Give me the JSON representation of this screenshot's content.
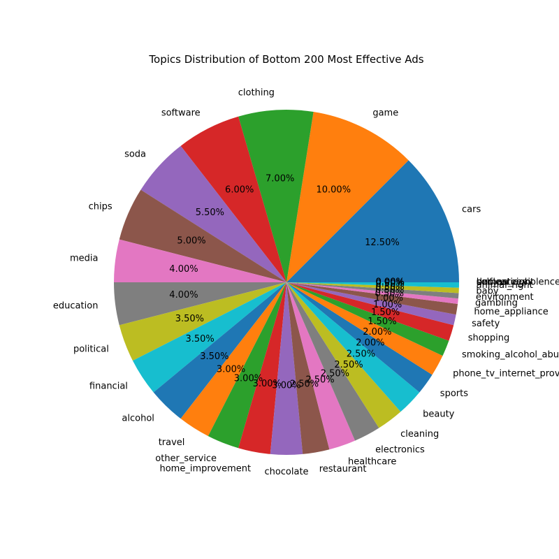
{
  "chart_data": {
    "type": "pie",
    "title": "Topics Distribution of Bottom 200 Most Effective Ads",
    "start_angle_deg": 0,
    "direction": "counterclockwise",
    "value_format": "percent_2_decimals",
    "slices": [
      {
        "label": "cars",
        "value": 12.5,
        "color": "#1f77b4"
      },
      {
        "label": "game",
        "value": 10.0,
        "color": "#ff7f0e"
      },
      {
        "label": "clothing",
        "value": 7.0,
        "color": "#2ca02c"
      },
      {
        "label": "software",
        "value": 6.0,
        "color": "#d62728"
      },
      {
        "label": "soda",
        "value": 5.5,
        "color": "#9467bd"
      },
      {
        "label": "chips",
        "value": 5.0,
        "color": "#8c564b"
      },
      {
        "label": "media",
        "value": 4.0,
        "color": "#e377c2"
      },
      {
        "label": "education",
        "value": 4.0,
        "color": "#7f7f7f"
      },
      {
        "label": "political",
        "value": 3.5,
        "color": "#bcbd22"
      },
      {
        "label": "financial",
        "value": 3.5,
        "color": "#17becf"
      },
      {
        "label": "alcohol",
        "value": 3.5,
        "color": "#1f77b4"
      },
      {
        "label": "travel",
        "value": 3.0,
        "color": "#ff7f0e"
      },
      {
        "label": "other_service",
        "value": 3.0,
        "color": "#2ca02c"
      },
      {
        "label": "home_improvement",
        "value": 3.0,
        "color": "#d62728"
      },
      {
        "label": "chocolate",
        "value": 3.0,
        "color": "#9467bd"
      },
      {
        "label": "restaurant",
        "value": 2.5,
        "color": "#8c564b"
      },
      {
        "label": "healthcare",
        "value": 2.5,
        "color": "#e377c2"
      },
      {
        "label": "electronics",
        "value": 2.5,
        "color": "#7f7f7f"
      },
      {
        "label": "cleaning",
        "value": 2.5,
        "color": "#bcbd22"
      },
      {
        "label": "beauty",
        "value": 2.5,
        "color": "#17becf"
      },
      {
        "label": "sports",
        "value": 2.0,
        "color": "#1f77b4"
      },
      {
        "label": "phone_tv_internet_providers",
        "value": 2.0,
        "color": "#ff7f0e"
      },
      {
        "label": "smoking_alcohol_abuse",
        "value": 1.5,
        "color": "#2ca02c"
      },
      {
        "label": "shopping",
        "value": 1.5,
        "color": "#d62728"
      },
      {
        "label": "safety",
        "value": 1.0,
        "color": "#9467bd"
      },
      {
        "label": "home_appliance",
        "value": 1.0,
        "color": "#8c564b"
      },
      {
        "label": "gambling",
        "value": 0.5,
        "color": "#e377c2"
      },
      {
        "label": "environment",
        "value": 0.5,
        "color": "#7f7f7f"
      },
      {
        "label": "baby",
        "value": 0.5,
        "color": "#bcbd22"
      },
      {
        "label": "animal_right",
        "value": 0.5,
        "color": "#17becf"
      },
      {
        "label": "human_right",
        "value": 0.0,
        "color": "#1f77b4"
      },
      {
        "label": "self_esteem",
        "value": 0.0,
        "color": "#ff7f0e"
      },
      {
        "label": "domestic_violence",
        "value": 0.0,
        "color": "#2ca02c"
      },
      {
        "label": "unclear",
        "value": 0.0,
        "color": "#d62728"
      }
    ]
  }
}
